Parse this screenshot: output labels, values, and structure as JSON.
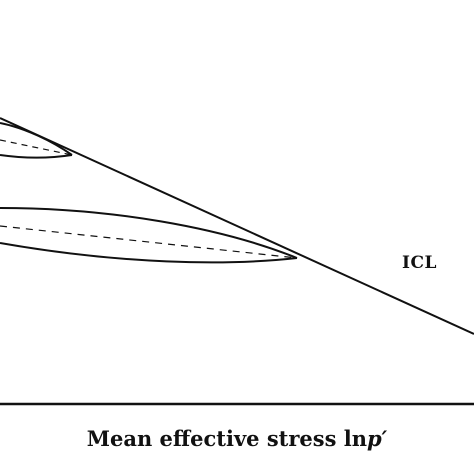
{
  "labels": {
    "line_label": "ICL",
    "x_axis_prefix": "Mean effective stress ln",
    "x_axis_symbol": "p′"
  },
  "style": {
    "ink_color": "#111111",
    "background_color": "#ffffff"
  }
}
